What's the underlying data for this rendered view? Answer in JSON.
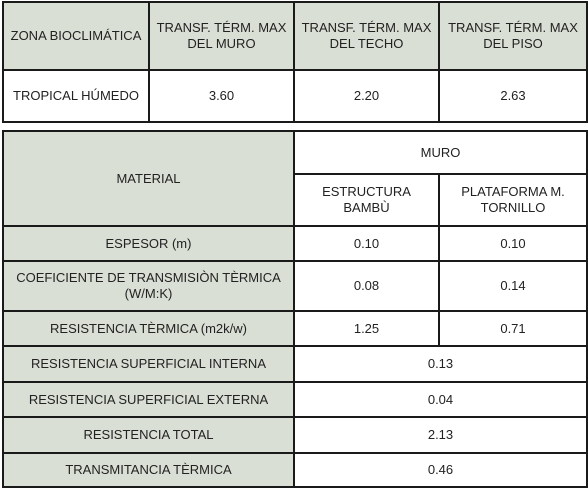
{
  "summary": {
    "headers": [
      "ZONA BIOCLIMÁTICA",
      "TRANSF. TÉRM. MAX DEL MURO",
      "TRANSF. TÉRM. MAX DEL TECHO",
      "TRANSF. TÉRM. MAX DEL PISO"
    ],
    "row": [
      "TROPICAL HÚMEDO",
      "3.60",
      "2.20",
      "2.63"
    ]
  },
  "material": {
    "material_label": "MATERIAL",
    "muro_label": "MURO",
    "col1_label": "ESTRUCTURA BAMBÙ",
    "col2_label": "PLATAFORMA M. TORNILLO",
    "rows": [
      {
        "label": "ESPESOR (m)",
        "v1": "0.10",
        "v2": "0.10"
      },
      {
        "label": "COEFICIENTE DE TRANSMISIÒN TÈRMICA (W/M:K)",
        "v1": "0.08",
        "v2": "0.14"
      },
      {
        "label": "RESISTENCIA TÈRMICA (m2k/w)",
        "v1": "1.25",
        "v2": "0.71"
      }
    ],
    "merged_rows": [
      {
        "label": "RESISTENCIA SUPERFICIAL INTERNA",
        "value": "0.13"
      },
      {
        "label": "RESISTENCIA SUPERFICIAL EXTERNA",
        "value": "0.04"
      },
      {
        "label": "RESISTENCIA TOTAL",
        "value": "2.13"
      },
      {
        "label": "TRANSMITANCIA TÈRMICA",
        "value": "0.46"
      }
    ]
  }
}
